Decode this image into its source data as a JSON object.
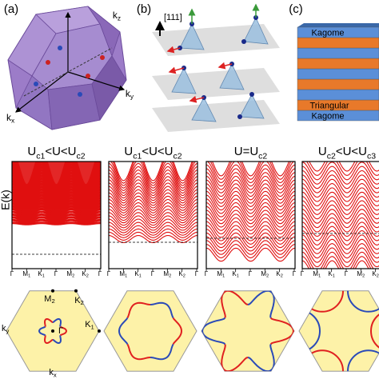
{
  "panel_labels": [
    "(a)",
    "(b)",
    "(c)"
  ],
  "bz_axes": [
    {
      "main": "k",
      "sub": "z"
    },
    {
      "main": "k",
      "sub": "y"
    },
    {
      "main": "k",
      "sub": "x"
    }
  ],
  "lattice": {
    "direction": "[111]"
  },
  "layers": {
    "top": "Kagome",
    "middle": "Triangular",
    "bottom": "Kagome"
  },
  "band_plots": {
    "y_label": "E(k)",
    "titles": [
      [
        {
          "text": "U"
        },
        {
          "text": "c1",
          "sub": true
        },
        {
          "text": "<U<U"
        },
        {
          "text": "c2",
          "sub": true
        }
      ],
      [
        {
          "text": "U"
        },
        {
          "text": "c1",
          "sub": true
        },
        {
          "text": "<U<U"
        },
        {
          "text": "c2",
          "sub": true
        }
      ],
      [
        {
          "text": "U=U"
        },
        {
          "text": "c2",
          "sub": true
        }
      ],
      [
        {
          "text": "U"
        },
        {
          "text": "c2",
          "sub": true
        },
        {
          "text": "<U<U"
        },
        {
          "text": "c3",
          "sub": true
        }
      ]
    ],
    "x_labels": [
      {
        "main": "Γ"
      },
      {
        "main": "M",
        "sub": "1"
      },
      {
        "main": "K",
        "sub": "1"
      },
      {
        "main": "Γ"
      },
      {
        "main": "M",
        "sub": "2"
      },
      {
        "main": "K",
        "sub": "2"
      },
      {
        "main": "Γ"
      }
    ]
  },
  "fermi_surface": {
    "points": [
      {
        "main": "M",
        "sub": "2"
      },
      {
        "main": "K",
        "sub": "2"
      },
      {
        "main": "K",
        "sub": "1"
      },
      {
        "main": "Γ"
      }
    ],
    "axes": [
      {
        "main": "k",
        "sub": "y"
      },
      {
        "main": "k",
        "sub": "x"
      }
    ]
  }
}
